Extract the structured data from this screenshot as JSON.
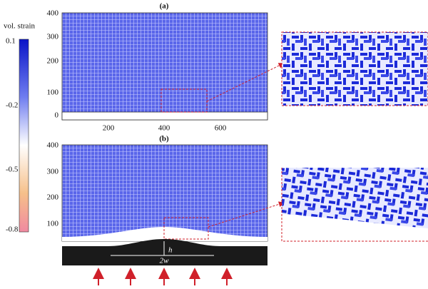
{
  "colorbar": {
    "label": "vol. strain",
    "ticks": [
      "0.1",
      "-0.2",
      "-0.5",
      "-0.8"
    ]
  },
  "panel_a": {
    "title": "(a)",
    "yticks": [
      "400",
      "300",
      "200",
      "100",
      "0"
    ],
    "xticks": [
      "200",
      "400",
      "600"
    ]
  },
  "panel_b": {
    "title": "(b)",
    "yticks": [
      "400",
      "300",
      "200",
      "100"
    ],
    "h_label": "h",
    "w_label": "2w"
  }
}
